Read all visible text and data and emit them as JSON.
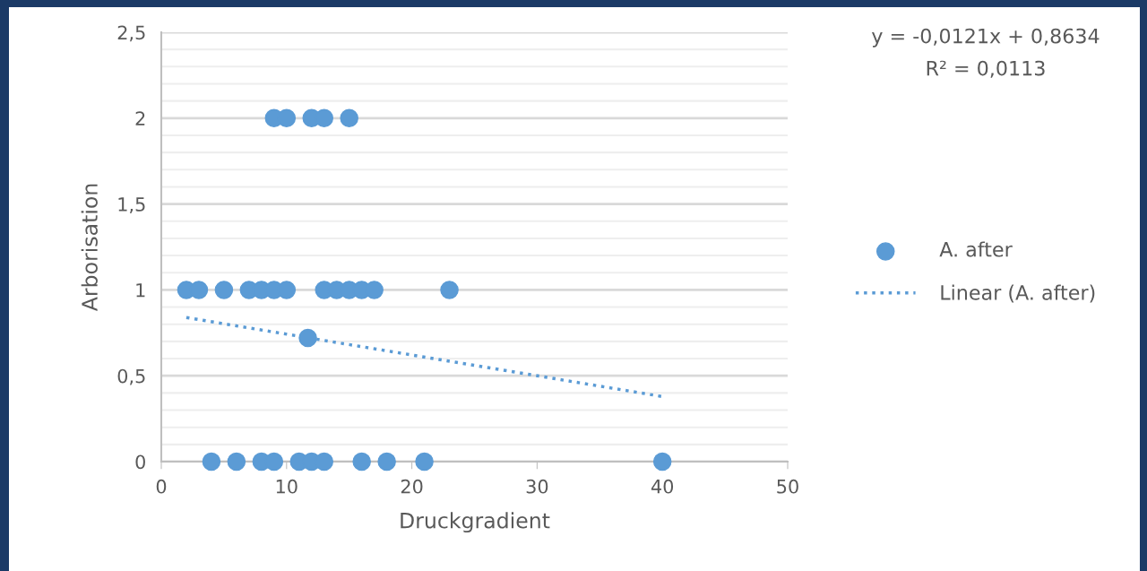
{
  "chart_data": {
    "type": "scatter",
    "xlabel": "Druckgradient",
    "ylabel": "Arborisation",
    "xlim": [
      0,
      50
    ],
    "xticks": [
      0,
      10,
      20,
      30,
      40,
      50
    ],
    "ylim": [
      0,
      2.5
    ],
    "yticks": [
      0,
      {
        "value": 0.1,
        "label": null
      },
      {
        "value": 0.2,
        "label": null
      },
      {
        "value": 0.3,
        "label": null
      },
      {
        "value": 0.4,
        "label": null
      },
      {
        "value": 0.5,
        "label": "0,5"
      },
      {
        "value": 0.6,
        "label": null
      },
      {
        "value": 0.7,
        "label": null
      },
      {
        "value": 0.8,
        "label": null
      },
      {
        "value": 0.9,
        "label": null
      },
      1,
      {
        "value": 1.1,
        "label": null
      },
      {
        "value": 1.2,
        "label": null
      },
      {
        "value": 1.3,
        "label": null
      },
      {
        "value": 1.4,
        "label": null
      },
      {
        "value": 1.5,
        "label": "1,5"
      },
      {
        "value": 1.6,
        "label": null
      },
      {
        "value": 1.7,
        "label": null
      },
      {
        "value": 1.8,
        "label": null
      },
      {
        "value": 1.9,
        "label": null
      },
      2,
      {
        "value": 2.1,
        "label": null
      },
      {
        "value": 2.2,
        "label": null
      },
      {
        "value": 2.3,
        "label": null
      },
      {
        "value": 2.4,
        "label": null
      },
      {
        "value": 2.5,
        "label": "2,5"
      }
    ],
    "grid": "y",
    "legend": "right",
    "marker": "circle",
    "series": [
      {
        "name": "A. after",
        "color": "#5b9bd5",
        "x": [
          9,
          10,
          12,
          13,
          15,
          2,
          3,
          5,
          7,
          8,
          9,
          10,
          13,
          14,
          15,
          16,
          17,
          23,
          11.7,
          4,
          6,
          8,
          9,
          11,
          12,
          13,
          16,
          18,
          21,
          40
        ],
        "values": [
          2,
          2,
          2,
          2,
          2,
          1,
          1,
          1,
          1,
          1,
          1,
          1,
          1,
          1,
          1,
          1,
          1,
          1,
          0.72,
          0,
          0,
          0,
          0,
          0,
          0,
          0,
          0,
          0,
          0,
          0
        ]
      },
      {
        "name": "Linear (A. after)",
        "type": "line",
        "color": "#5b9bd5",
        "line_style": "dotted",
        "marker": "none",
        "x": [
          2,
          40
        ],
        "values": [
          0.839,
          0.379
        ]
      }
    ],
    "annotations": [
      "y = -0,0121x + 0,8634",
      "R² = 0,0113"
    ]
  }
}
